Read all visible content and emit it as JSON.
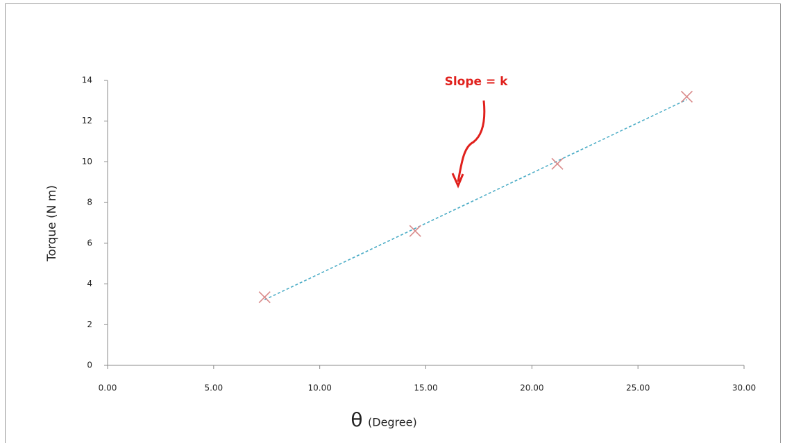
{
  "chart_data": {
    "type": "scatter",
    "ylabel": "Torque (N m)",
    "xlabel_symbol": "θ",
    "xlabel_unit": "(Degree)",
    "annotation": "Slope = k",
    "x": [
      7.4,
      14.5,
      21.2,
      27.3
    ],
    "series": [
      {
        "color": "#d98a8a",
        "values": [
          3.35,
          6.6,
          9.9,
          13.2
        ]
      }
    ],
    "trendline": {
      "color": "#4bacc6",
      "dashed": true
    },
    "xlim": [
      0,
      30
    ],
    "xticks": [
      {
        "value": 0,
        "label": "0.00"
      },
      {
        "value": 5,
        "label": "5.00"
      },
      {
        "value": 10,
        "label": "10.00"
      },
      {
        "value": 15,
        "label": "15.00"
      },
      {
        "value": 20,
        "label": "20.00"
      },
      {
        "value": 25,
        "label": "25.00"
      },
      {
        "value": 30,
        "label": "30.00"
      }
    ],
    "ylim": [
      0,
      14
    ],
    "yticks": [
      0,
      2,
      4,
      6,
      8,
      10,
      12,
      14
    ],
    "grid": false
  }
}
